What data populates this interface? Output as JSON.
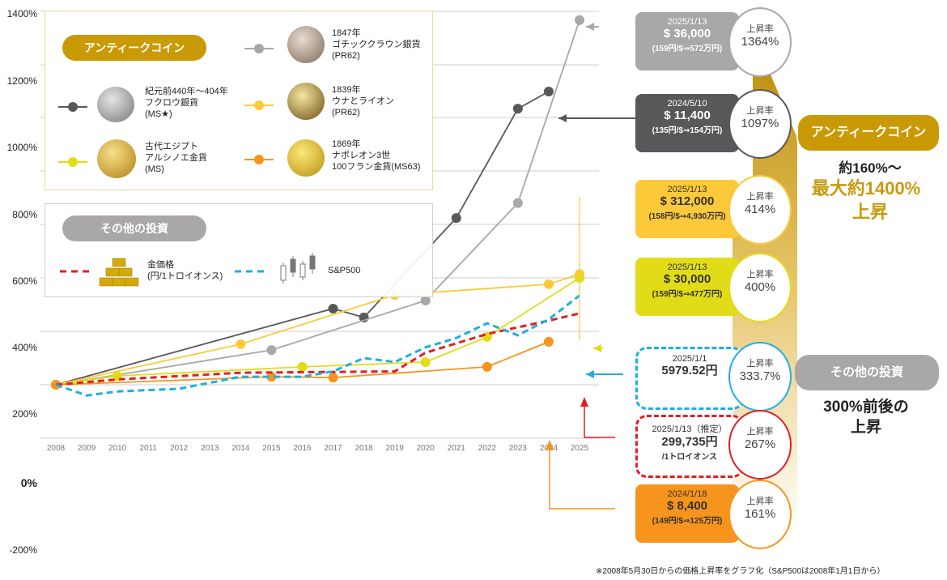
{
  "chart_data": {
    "type": "line",
    "title": "",
    "xlabel": "",
    "ylabel": "",
    "x": [
      2008,
      2009,
      2010,
      2011,
      2012,
      2013,
      2014,
      2015,
      2016,
      2017,
      2018,
      2019,
      2020,
      2021,
      2022,
      2023,
      2024,
      2025
    ],
    "x_tick_labels": [
      "2008",
      "2009",
      "2010",
      "2011",
      "2012",
      "2013",
      "2014",
      "2015",
      "2016",
      "2017",
      "2018",
      "2019",
      "2020",
      "2021",
      "2022",
      "2023",
      "2024",
      "2025"
    ],
    "y_tick_labels": [
      "1400%",
      "1200%",
      "1000%",
      "800%",
      "600%",
      "400%",
      "200%",
      "0%",
      "-200%"
    ],
    "ylim": [
      0,
      1400
    ],
    "grid": true,
    "series": [
      {
        "name": "紀元前440年〜404年 フクロウ銀貨 (MS★)",
        "color": "#58585a",
        "points": [
          [
            2008,
            0
          ],
          [
            2017,
            285
          ],
          [
            2018,
            252
          ],
          [
            2021,
            624
          ],
          [
            2023,
            1033
          ],
          [
            2024,
            1097
          ]
        ]
      },
      {
        "name": "1847年 ゴチッククラウン銀貨 (PR62)",
        "color": "#a9a7a8",
        "points": [
          [
            2008,
            0
          ],
          [
            2015,
            130
          ],
          [
            2020,
            315
          ],
          [
            2023,
            680
          ],
          [
            2025,
            1364
          ]
        ]
      },
      {
        "name": "1839年 ウナとライオン (PR62)",
        "color": "#fcc93a",
        "points": [
          [
            2008,
            0
          ],
          [
            2014,
            152
          ],
          [
            2019,
            336
          ],
          [
            2024,
            376
          ],
          [
            2025,
            414
          ]
        ]
      },
      {
        "name": "古代エジプト アルシノエ金貨 (MS)",
        "color": "#e2dc18",
        "points": [
          [
            2008,
            0
          ],
          [
            2010,
            33
          ],
          [
            2016,
            67
          ],
          [
            2020,
            85
          ],
          [
            2022,
            179
          ],
          [
            2025,
            400
          ]
        ]
      },
      {
        "name": "1869年 ナポレオン3世 100フラン金貨(MS63)",
        "color": "#f7941d",
        "points": [
          [
            2008,
            0
          ],
          [
            2015,
            30
          ],
          [
            2017,
            27
          ],
          [
            2022,
            67
          ],
          [
            2024,
            161
          ]
        ]
      },
      {
        "name": "金価格 (円/1トロイオンス)",
        "color": "#e31e25",
        "dashed": true,
        "points": [
          [
            2008,
            0
          ],
          [
            2010,
            20
          ],
          [
            2014,
            45
          ],
          [
            2019,
            50
          ],
          [
            2020,
            120
          ],
          [
            2022,
            190
          ],
          [
            2024,
            240
          ],
          [
            2025,
            267
          ]
        ]
      },
      {
        "name": "S&P500",
        "color": "#1eaee4",
        "dashed": true,
        "points": [
          [
            2008,
            0
          ],
          [
            2009,
            -40
          ],
          [
            2010,
            -25
          ],
          [
            2012,
            -15
          ],
          [
            2014,
            30
          ],
          [
            2016,
            30
          ],
          [
            2017,
            50
          ],
          [
            2018,
            100
          ],
          [
            2019,
            85
          ],
          [
            2020,
            140
          ],
          [
            2021,
            175
          ],
          [
            2022,
            230
          ],
          [
            2023,
            185
          ],
          [
            2024,
            245
          ],
          [
            2025,
            334
          ]
        ]
      }
    ]
  },
  "legend": {
    "antique_label": "アンティークコイン",
    "other_label": "その他の投資",
    "items": [
      {
        "lines": [
          "紀元前440年〜404年",
          "フクロウ銀貨",
          "(MS★)"
        ]
      },
      {
        "lines": [
          "古代エジプト",
          "アルシノエ金貨",
          "(MS)"
        ]
      },
      {
        "lines": [
          "1847年",
          "ゴチッククラウン銀貨",
          "(PR62)"
        ]
      },
      {
        "lines": [
          "1839年",
          "ウナとライオン",
          "(PR62)"
        ]
      },
      {
        "lines": [
          "1869年",
          "ナポレオン3世",
          "100フラン金貨(MS63)"
        ]
      }
    ],
    "gold": {
      "lines": [
        "金価格",
        "(円/1トロイオンス)"
      ]
    },
    "sp500": {
      "label": "S&P500"
    }
  },
  "cards": [
    {
      "date": "2025/1/13",
      "price": "$ 36,000",
      "conv": "(159円/$⇒572万円)",
      "rate_label": "上昇率",
      "rate": "1364%",
      "color": "#a9a7a8"
    },
    {
      "date": "2024/5/10",
      "price": "$ 11,400",
      "conv": "(135円/$⇒154万円)",
      "rate_label": "上昇率",
      "rate": "1097%",
      "color": "#58585a"
    },
    {
      "date": "2025/1/13",
      "price": "$ 312,000",
      "conv": "(158円/$⇒4,930万円)",
      "rate_label": "上昇率",
      "rate": "414%",
      "color": "#fcc93a"
    },
    {
      "date": "2025/1/13",
      "price": "$ 30,000",
      "conv": "(159円/$⇒477万円)",
      "rate_label": "上昇率",
      "rate": "400%",
      "color": "#e2dc18"
    },
    {
      "date": "2025/1/1",
      "price": "5979.52円",
      "conv": "",
      "rate_label": "上昇率",
      "rate": "333.7%",
      "color": "#1eaee4"
    },
    {
      "date": "2025/1/13（推定）",
      "price": "299,735円",
      "conv": "/1トロイオンス",
      "rate_label": "上昇率",
      "rate": "267%",
      "color": "#e31e25"
    },
    {
      "date": "2024/1/18",
      "price": "$ 8,400",
      "conv": "(149円/$⇒125万円)",
      "rate_label": "上昇率",
      "rate": "161%",
      "color": "#f7941d"
    }
  ],
  "summary": {
    "antique_label": "アンティークコイン",
    "antique_line1": "約160%〜",
    "antique_line2": "最大約1400%",
    "antique_line3": "上昇",
    "other_label": "その他の投資",
    "other_line1": "300%前後の",
    "other_line2": "上昇"
  },
  "footnote": "※2008年5月30日からの価格上昇率をグラフ化（S&P500は2008年1月1日から）"
}
